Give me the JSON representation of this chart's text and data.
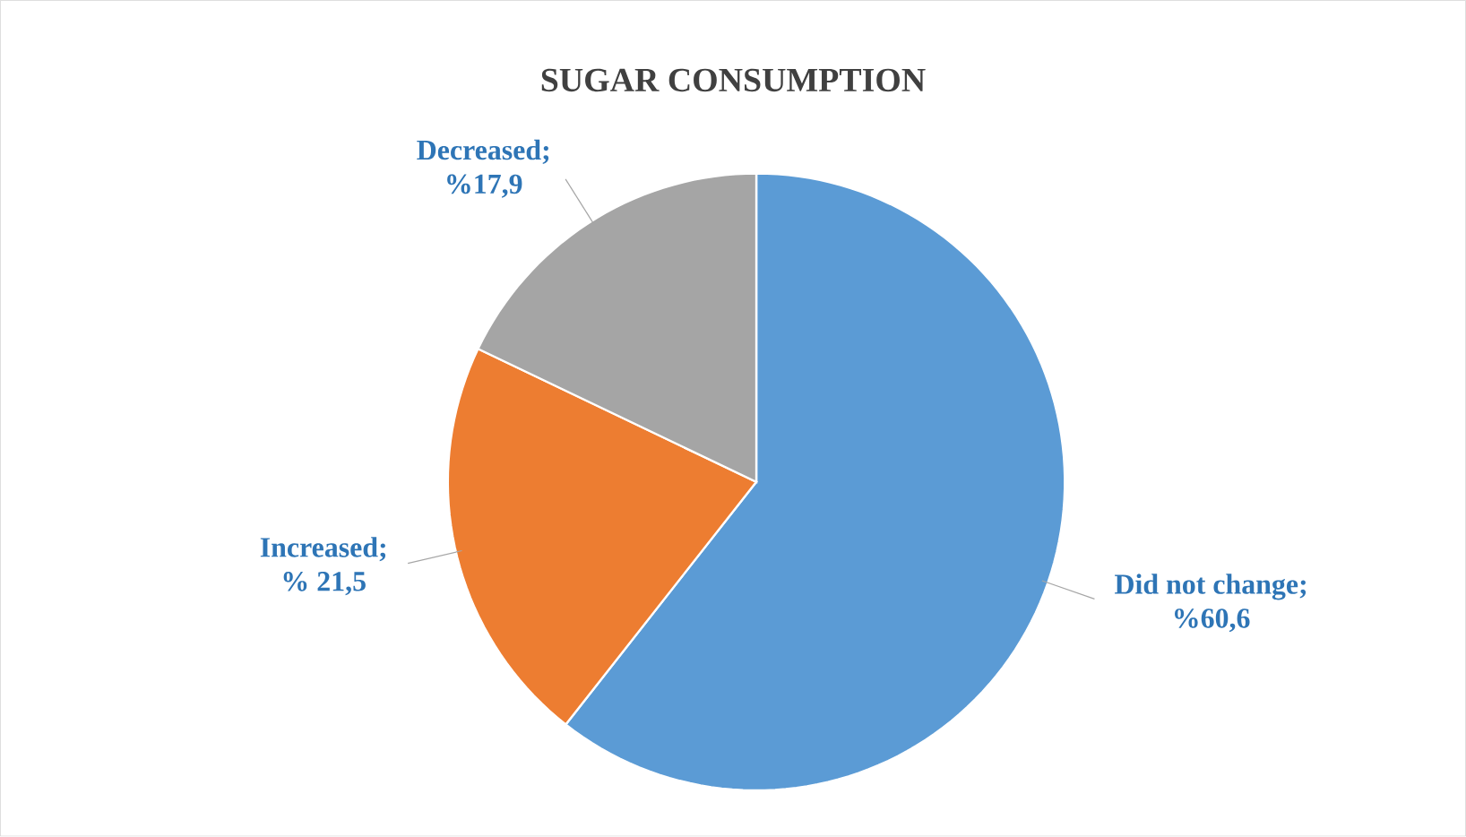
{
  "chart_data": {
    "type": "pie",
    "title": "SUGAR CONSUMPTION",
    "categories": [
      "Did not change",
      "Increased",
      "Decreased"
    ],
    "values": [
      60.6,
      21.5,
      17.9
    ],
    "value_labels": [
      "; %60,6",
      "; % 21,5",
      "; %17,9"
    ],
    "colors": [
      "#5b9bd5",
      "#ed7d31",
      "#a5a5a5"
    ]
  }
}
